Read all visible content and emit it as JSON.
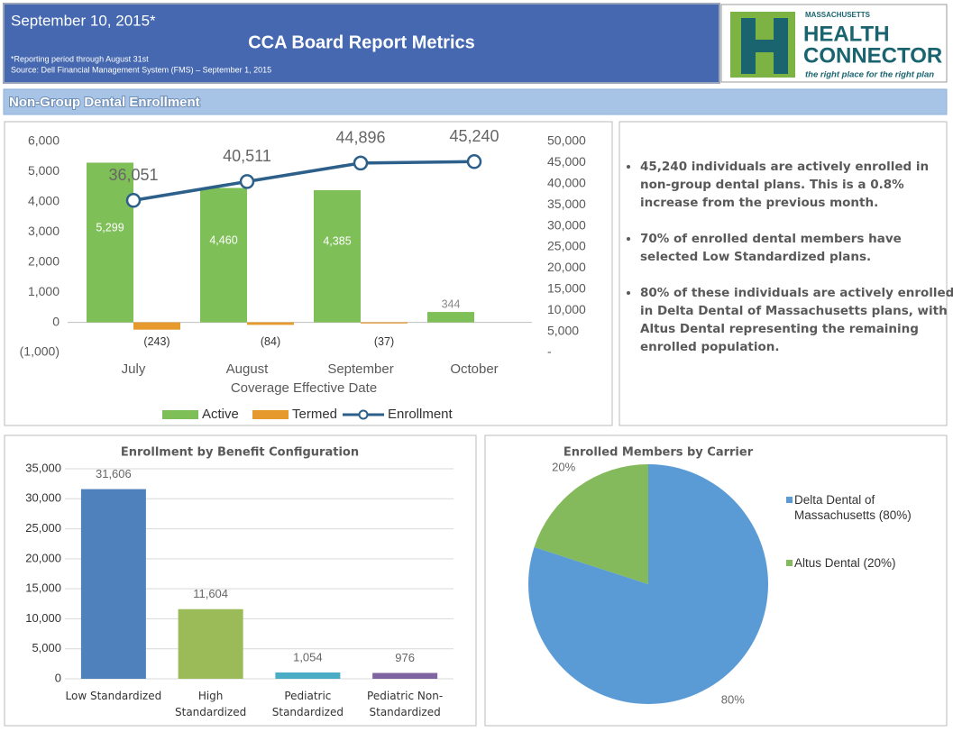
{
  "header": {
    "date": "September 10, 2015*",
    "title": "CCA Board Report Metrics",
    "note": "*Reporting period through August 31st",
    "source": "Source: Dell Financial Management System (FMS) – September 1, 2015"
  },
  "logo": {
    "line1": "MASSACHUSETTS",
    "line2": "HEALTH",
    "line3": "CONNECTOR",
    "tagline": "the right place for the right plan"
  },
  "section_title": "Non-Group Dental Enrollment",
  "bullets": [
    "45,240 individuals are actively enrolled in non-group dental plans. This is a 0.8% increase from the previous month.",
    "70% of enrolled dental members have selected Low Standardized plans.",
    "80% of these individuals are actively enrolled in Delta Dental of Massachusetts plans, with Altus Dental representing the remaining enrolled population."
  ],
  "chart_data": [
    {
      "type": "combo",
      "x_label": "Coverage Effective Date",
      "categories": [
        "July",
        "August",
        "September",
        "October"
      ],
      "series": [
        {
          "name": "Active",
          "type": "bar",
          "color": "#7fbf58",
          "values": [
            5299,
            4460,
            4385,
            344
          ],
          "value_labels": [
            "5,299",
            "4,460",
            "4,385",
            "344"
          ]
        },
        {
          "name": "Termed",
          "type": "bar",
          "color": "#e69a2e",
          "values": [
            -243,
            -84,
            -37,
            null
          ],
          "value_labels": [
            "(243)",
            "(84)",
            "(37)",
            null
          ]
        },
        {
          "name": "Enrollment",
          "type": "line",
          "axis": "y2",
          "color": "#2c5f8a",
          "values": [
            36051,
            40511,
            44896,
            45240
          ],
          "value_labels": [
            "36,051",
            "40,511",
            "44,896",
            "45,240"
          ]
        }
      ],
      "ylim": [
        -1000,
        6000
      ],
      "yticks": [
        {
          "value": -1000,
          "label": "(1,000)"
        },
        0,
        {
          "value": 1000,
          "label": "1,000"
        },
        {
          "value": 2000,
          "label": "2,000"
        },
        {
          "value": 3000,
          "label": "3,000"
        },
        {
          "value": 4000,
          "label": "4,000"
        },
        {
          "value": 5000,
          "label": "5,000"
        },
        {
          "value": 6000,
          "label": "6,000"
        }
      ],
      "y2lim": [
        0,
        50000
      ],
      "y2ticks": [
        {
          "value": 0,
          "label": "-"
        },
        {
          "value": 5000,
          "label": "5,000"
        },
        {
          "value": 10000,
          "label": "10,000"
        },
        {
          "value": 15000,
          "label": "15,000"
        },
        {
          "value": 20000,
          "label": "20,000"
        },
        {
          "value": 25000,
          "label": "25,000"
        },
        {
          "value": 30000,
          "label": "30,000"
        },
        {
          "value": 35000,
          "label": "35,000"
        },
        {
          "value": 40000,
          "label": "40,000"
        },
        {
          "value": 45000,
          "label": "45,000"
        },
        {
          "value": 50000,
          "label": "50,000"
        }
      ],
      "grid": false,
      "legend": "bottom"
    },
    {
      "type": "bar",
      "title": "Enrollment by Benefit Configuration",
      "categories": [
        "Low Standardized",
        "High Standardized",
        "Pediatric Standardized",
        "Pediatric Non-Standardized"
      ],
      "values": [
        31606,
        11604,
        1054,
        976
      ],
      "value_labels": [
        "31,606",
        "11,604",
        "1,054",
        "976"
      ],
      "colors": [
        "#4f81bd",
        "#9bbb59",
        "#4bacc6",
        "#8064a2"
      ],
      "ylim": [
        0,
        35000
      ],
      "yticks": [
        0,
        {
          "value": 5000,
          "label": "5,000"
        },
        {
          "value": 10000,
          "label": "10,000"
        },
        {
          "value": 15000,
          "label": "15,000"
        },
        {
          "value": 20000,
          "label": "20,000"
        },
        {
          "value": 25000,
          "label": "25,000"
        },
        {
          "value": 30000,
          "label": "30,000"
        },
        {
          "value": 35000,
          "label": "35,000"
        }
      ],
      "grid": true
    },
    {
      "type": "pie",
      "title": "Enrolled Members by Carrier",
      "categories": [
        "Delta Dental of Massachusetts (80%)",
        "Altus Dental (20%)"
      ],
      "values": [
        80,
        20
      ],
      "value_labels": [
        "80%",
        "20%"
      ],
      "colors": [
        "#5b9bd5",
        "#84ba5b"
      ],
      "legend": "right"
    }
  ]
}
